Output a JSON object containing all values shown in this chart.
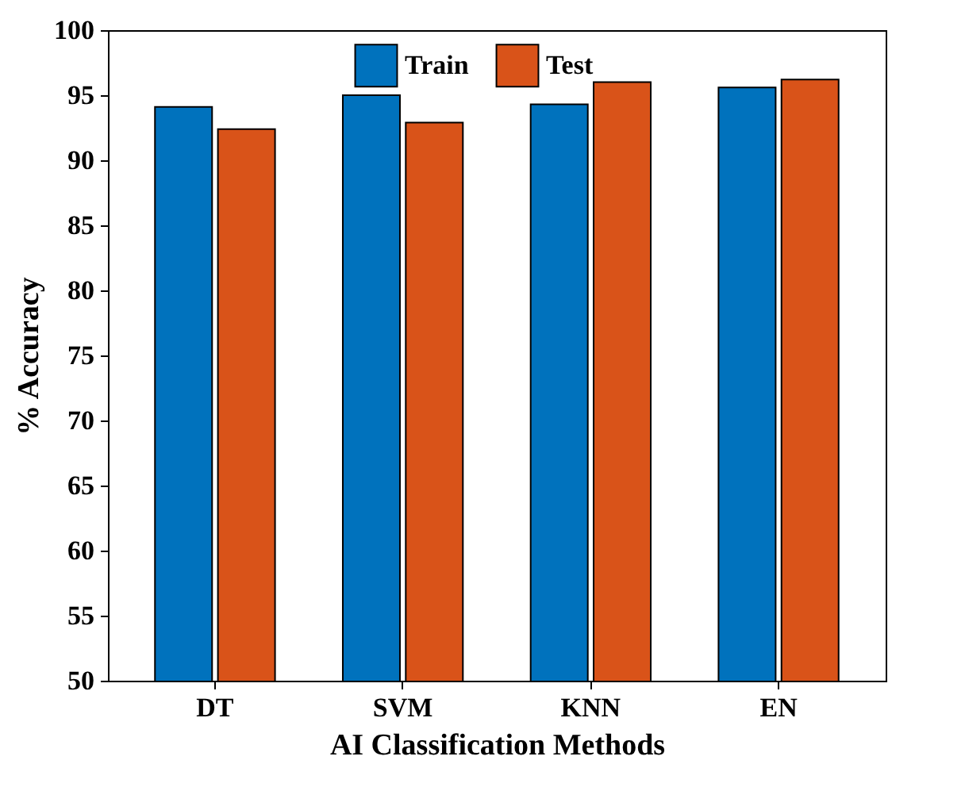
{
  "chart_data": {
    "type": "bar",
    "xlabel": "AI Classification Methods",
    "ylabel": "% Accuracy",
    "categories": [
      "DT",
      "SVM",
      "KNN",
      "EN"
    ],
    "series": [
      {
        "name": "Train",
        "color": "#0072bd",
        "values": [
          94.1,
          95.0,
          94.3,
          95.6
        ]
      },
      {
        "name": "Test",
        "color": "#d95319",
        "values": [
          92.4,
          92.9,
          96.0,
          96.2
        ]
      }
    ],
    "ylim": [
      50,
      100
    ],
    "yticks": [
      50,
      55,
      60,
      65,
      70,
      75,
      80,
      85,
      90,
      95,
      100
    ],
    "legend": "top",
    "grid": false
  }
}
